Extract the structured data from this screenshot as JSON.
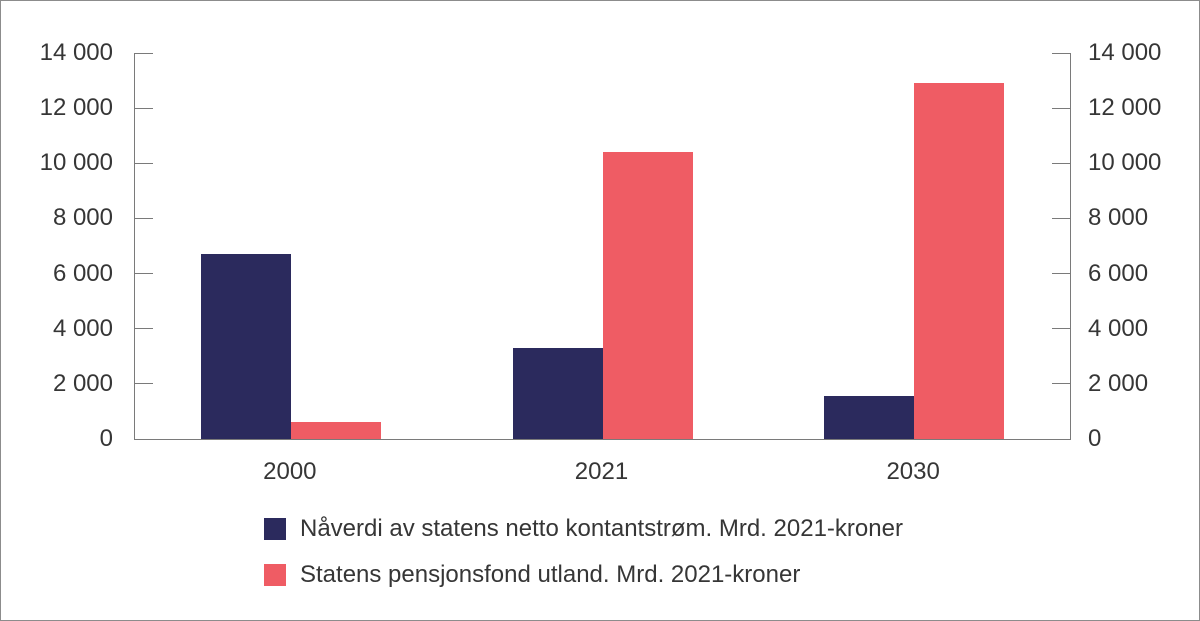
{
  "figure": {
    "background": "#ffffff",
    "border_color": "#8c8c8c",
    "axis_color": "#7a7a7a",
    "text_color": "#363636"
  },
  "chart_data": {
    "type": "bar",
    "categories": [
      "2000",
      "2021",
      "2030"
    ],
    "series": [
      {
        "name": "Nåverdi av statens netto kontantstrøm. Mrd. 2021-kroner",
        "color": "#2b2a5d",
        "values": [
          6700,
          3300,
          1550
        ]
      },
      {
        "name": "Statens pensjonsfond utland. Mrd. 2021-kroner",
        "color": "#ef5c64",
        "values": [
          600,
          10400,
          12900
        ]
      }
    ],
    "ylim": [
      0,
      14000
    ],
    "ytick_values": [
      0,
      2000,
      4000,
      6000,
      8000,
      10000,
      12000,
      14000
    ],
    "ytick_labels": [
      "0",
      "2 000",
      "4 000",
      "6 000",
      "8 000",
      "10 000",
      "12 000",
      "14 000"
    ],
    "dual_axis": true,
    "grid": false,
    "legend_position": "bottom"
  }
}
